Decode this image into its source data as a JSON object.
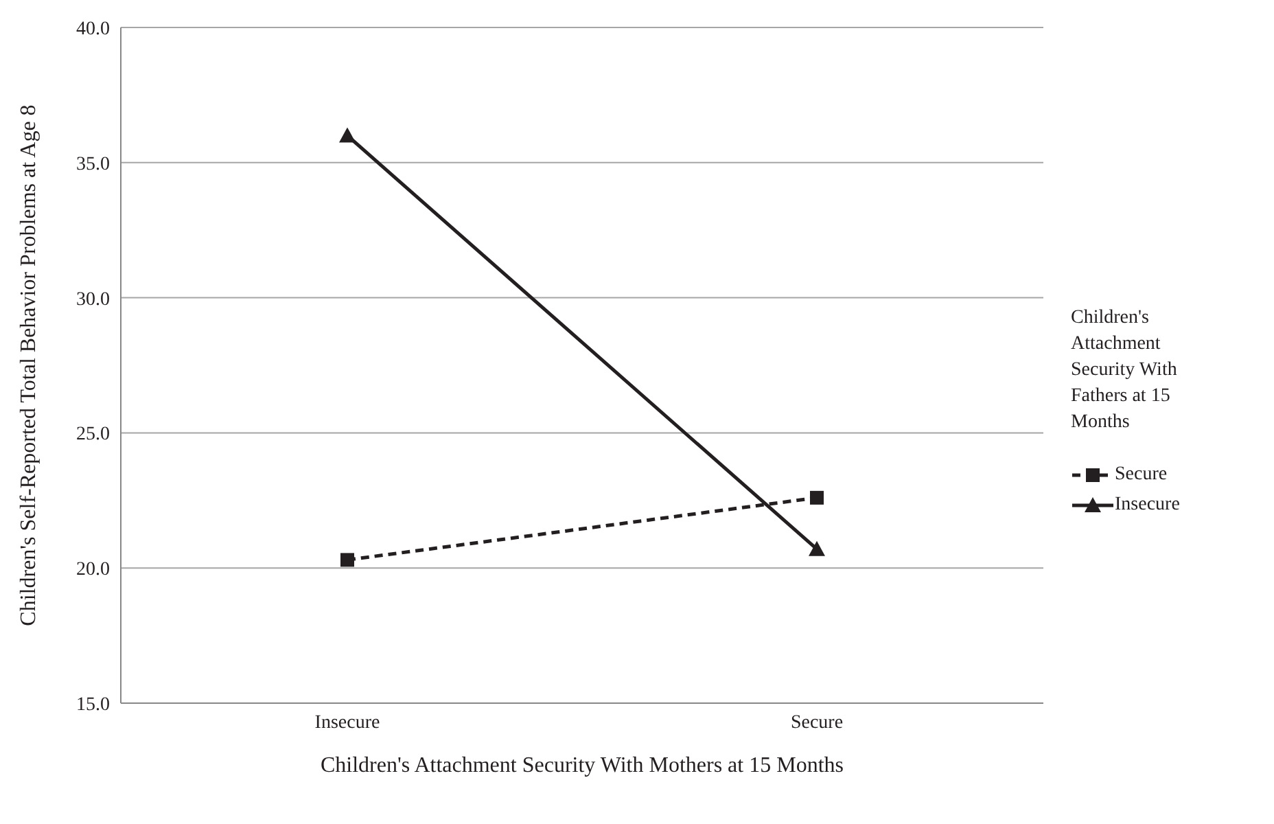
{
  "chart_data": {
    "type": "line",
    "xlabel": "Children's Attachment Security With Mothers at 15 Months",
    "ylabel": "Children's Self-Reported Total Behavior Problems at Age 8",
    "legend_title": "Children's Attachment Security With Fathers at 15 Months",
    "categories": [
      "Insecure",
      "Secure"
    ],
    "series": [
      {
        "name": "Secure",
        "color": "#231f20",
        "values": [
          20.3,
          22.6
        ],
        "marker": "square",
        "line_style": "dashed"
      },
      {
        "name": "Insecure",
        "color": "#231f20",
        "values": [
          36.0,
          20.7
        ],
        "marker": "triangle",
        "line_style": "solid"
      }
    ],
    "ylim": [
      15,
      40
    ],
    "yticks": [
      {
        "value": 15,
        "label": "15.0"
      },
      {
        "value": 20,
        "label": "20.0"
      },
      {
        "value": 25,
        "label": "25.0"
      },
      {
        "value": 30,
        "label": "30.0"
      },
      {
        "value": 35,
        "label": "35.0"
      },
      {
        "value": 40,
        "label": "40.0"
      }
    ],
    "grid": "y",
    "legend": "right"
  }
}
